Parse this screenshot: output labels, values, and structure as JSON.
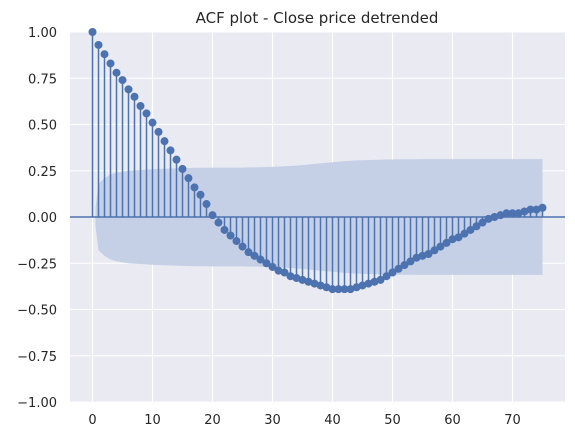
{
  "chart_data": {
    "type": "stem",
    "title": "ACF plot - Close price detrended",
    "xlabel": "",
    "ylabel": "",
    "xlim": [
      -3.75,
      78.75
    ],
    "ylim": [
      -1.0,
      1.0
    ],
    "xticks": [
      0,
      10,
      20,
      30,
      40,
      50,
      60,
      70
    ],
    "yticks": [
      "1.00",
      "0.75",
      "0.50",
      "0.25",
      "0.00",
      "−0.25",
      "−0.50",
      "−0.75",
      "−1.00"
    ],
    "ytick_values": [
      1.0,
      0.75,
      0.5,
      0.25,
      0.0,
      -0.25,
      -0.5,
      -0.75,
      -1.0
    ],
    "grid": true,
    "lags": [
      0,
      1,
      2,
      3,
      4,
      5,
      6,
      7,
      8,
      9,
      10,
      11,
      12,
      13,
      14,
      15,
      16,
      17,
      18,
      19,
      20,
      21,
      22,
      23,
      24,
      25,
      26,
      27,
      28,
      29,
      30,
      31,
      32,
      33,
      34,
      35,
      36,
      37,
      38,
      39,
      40,
      41,
      42,
      43,
      44,
      45,
      46,
      47,
      48,
      49,
      50,
      51,
      52,
      53,
      54,
      55,
      56,
      57,
      58,
      59,
      60,
      61,
      62,
      63,
      64,
      65,
      66,
      67,
      68,
      69,
      70,
      71,
      72,
      73,
      74,
      75
    ],
    "values": [
      1.0,
      0.93,
      0.88,
      0.83,
      0.78,
      0.74,
      0.69,
      0.65,
      0.6,
      0.56,
      0.51,
      0.46,
      0.41,
      0.36,
      0.31,
      0.26,
      0.21,
      0.16,
      0.12,
      0.07,
      0.01,
      -0.03,
      -0.07,
      -0.1,
      -0.13,
      -0.16,
      -0.19,
      -0.21,
      -0.23,
      -0.25,
      -0.27,
      -0.29,
      -0.3,
      -0.32,
      -0.33,
      -0.34,
      -0.35,
      -0.36,
      -0.37,
      -0.38,
      -0.39,
      -0.39,
      -0.39,
      -0.39,
      -0.38,
      -0.37,
      -0.36,
      -0.35,
      -0.34,
      -0.32,
      -0.3,
      -0.28,
      -0.26,
      -0.24,
      -0.22,
      -0.21,
      -0.2,
      -0.18,
      -0.16,
      -0.14,
      -0.12,
      -0.11,
      -0.09,
      -0.07,
      -0.05,
      -0.03,
      -0.01,
      0.0,
      0.01,
      0.02,
      0.02,
      0.02,
      0.03,
      0.04,
      0.04,
      0.05
    ],
    "confint_upper": [
      0.0,
      0.18,
      0.21,
      0.23,
      0.24,
      0.245,
      0.25,
      0.252,
      0.254,
      0.256,
      0.258,
      0.26,
      0.261,
      0.262,
      0.263,
      0.264,
      0.265,
      0.266,
      0.266,
      0.266,
      0.267,
      0.267,
      0.267,
      0.267,
      0.267,
      0.267,
      0.268,
      0.268,
      0.269,
      0.27,
      0.271,
      0.272,
      0.274,
      0.276,
      0.278,
      0.281,
      0.284,
      0.287,
      0.29,
      0.293,
      0.296,
      0.299,
      0.302,
      0.304,
      0.306,
      0.307,
      0.308,
      0.309,
      0.31,
      0.311,
      0.311,
      0.312,
      0.312,
      0.312,
      0.312,
      0.313,
      0.313,
      0.313,
      0.313,
      0.313,
      0.313,
      0.313,
      0.313,
      0.313,
      0.313,
      0.313,
      0.313,
      0.313,
      0.313,
      0.313,
      0.313,
      0.313,
      0.313,
      0.313,
      0.313,
      0.313
    ],
    "colors": {
      "plot_bg": "#eaeaf2",
      "grid": "#ffffff",
      "stem": "#4c72b0",
      "marker": "#4c72b0",
      "confint": "#c3cde4",
      "zero_line": "#4c72b0"
    }
  }
}
